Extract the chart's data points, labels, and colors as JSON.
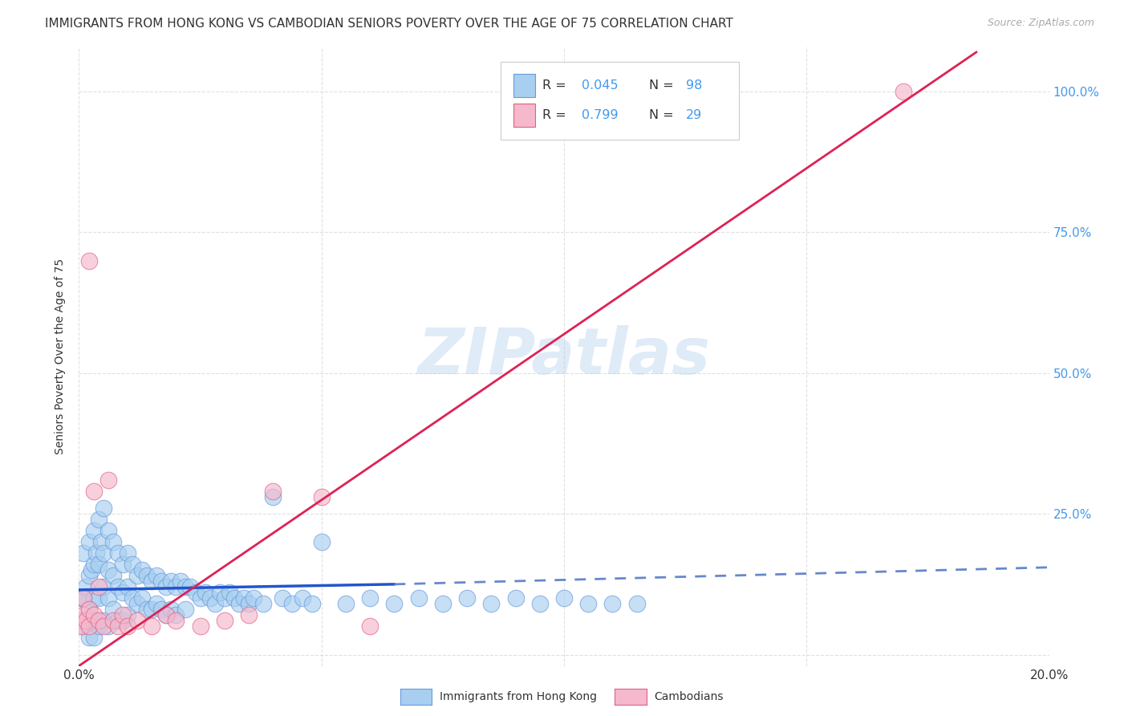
{
  "title": "IMMIGRANTS FROM HONG KONG VS CAMBODIAN SENIORS POVERTY OVER THE AGE OF 75 CORRELATION CHART",
  "source": "Source: ZipAtlas.com",
  "ylabel": "Seniors Poverty Over the Age of 75",
  "xlim": [
    0.0,
    0.2
  ],
  "ylim": [
    -0.02,
    1.08
  ],
  "x_ticks": [
    0.0,
    0.05,
    0.1,
    0.15,
    0.2
  ],
  "x_tick_labels": [
    "0.0%",
    "",
    "",
    "",
    "20.0%"
  ],
  "y_ticks": [
    0.0,
    0.25,
    0.5,
    0.75,
    1.0
  ],
  "y_tick_labels": [
    "",
    "25.0%",
    "50.0%",
    "75.0%",
    "100.0%"
  ],
  "hk_color": "#a8cff0",
  "hk_edge_color": "#6699dd",
  "cam_color": "#f5b8cc",
  "cam_edge_color": "#e06080",
  "trend_hk_solid_color": "#2255cc",
  "trend_hk_dash_color": "#6688cc",
  "trend_cam_color": "#dd2255",
  "watermark": "ZIPatlas",
  "hk_scatter_x": [
    0.0005,
    0.001,
    0.001,
    0.001,
    0.0015,
    0.002,
    0.002,
    0.002,
    0.002,
    0.0025,
    0.003,
    0.003,
    0.003,
    0.003,
    0.003,
    0.0035,
    0.004,
    0.004,
    0.004,
    0.004,
    0.0045,
    0.005,
    0.005,
    0.005,
    0.005,
    0.006,
    0.006,
    0.006,
    0.006,
    0.007,
    0.007,
    0.007,
    0.008,
    0.008,
    0.008,
    0.009,
    0.009,
    0.009,
    0.01,
    0.01,
    0.01,
    0.011,
    0.011,
    0.012,
    0.012,
    0.013,
    0.013,
    0.014,
    0.014,
    0.015,
    0.015,
    0.016,
    0.016,
    0.017,
    0.017,
    0.018,
    0.018,
    0.019,
    0.019,
    0.02,
    0.02,
    0.021,
    0.022,
    0.022,
    0.023,
    0.024,
    0.025,
    0.026,
    0.027,
    0.028,
    0.029,
    0.03,
    0.031,
    0.032,
    0.033,
    0.034,
    0.035,
    0.036,
    0.038,
    0.04,
    0.042,
    0.044,
    0.046,
    0.048,
    0.05,
    0.055,
    0.06,
    0.065,
    0.07,
    0.075,
    0.08,
    0.085,
    0.09,
    0.095,
    0.1,
    0.105,
    0.11,
    0.115
  ],
  "hk_scatter_y": [
    0.1,
    0.18,
    0.1,
    0.05,
    0.12,
    0.2,
    0.14,
    0.08,
    0.03,
    0.15,
    0.22,
    0.16,
    0.1,
    0.06,
    0.03,
    0.18,
    0.24,
    0.16,
    0.1,
    0.05,
    0.2,
    0.26,
    0.18,
    0.12,
    0.06,
    0.22,
    0.15,
    0.1,
    0.05,
    0.2,
    0.14,
    0.08,
    0.18,
    0.12,
    0.06,
    0.16,
    0.11,
    0.06,
    0.18,
    0.12,
    0.07,
    0.16,
    0.1,
    0.14,
    0.09,
    0.15,
    0.1,
    0.14,
    0.08,
    0.13,
    0.08,
    0.14,
    0.09,
    0.13,
    0.08,
    0.12,
    0.07,
    0.13,
    0.08,
    0.12,
    0.07,
    0.13,
    0.12,
    0.08,
    0.12,
    0.11,
    0.1,
    0.11,
    0.1,
    0.09,
    0.11,
    0.1,
    0.11,
    0.1,
    0.09,
    0.1,
    0.09,
    0.1,
    0.09,
    0.28,
    0.1,
    0.09,
    0.1,
    0.09,
    0.2,
    0.09,
    0.1,
    0.09,
    0.1,
    0.09,
    0.1,
    0.09,
    0.1,
    0.09,
    0.1,
    0.09,
    0.09,
    0.09
  ],
  "cam_scatter_x": [
    0.0003,
    0.0005,
    0.001,
    0.001,
    0.0015,
    0.002,
    0.002,
    0.003,
    0.003,
    0.004,
    0.004,
    0.005,
    0.006,
    0.007,
    0.008,
    0.009,
    0.01,
    0.012,
    0.015,
    0.018,
    0.02,
    0.025,
    0.03,
    0.035,
    0.04,
    0.05,
    0.06,
    0.17,
    0.002
  ],
  "cam_scatter_y": [
    0.06,
    0.05,
    0.07,
    0.1,
    0.06,
    0.08,
    0.05,
    0.29,
    0.07,
    0.06,
    0.12,
    0.05,
    0.31,
    0.06,
    0.05,
    0.07,
    0.05,
    0.06,
    0.05,
    0.07,
    0.06,
    0.05,
    0.06,
    0.07,
    0.29,
    0.28,
    0.05,
    1.0,
    0.7
  ],
  "hk_trend_x0": 0.0,
  "hk_trend_x_solid_end": 0.065,
  "hk_trend_x_dash_end": 0.2,
  "hk_trend_y0": 0.115,
  "hk_trend_y_solid_end": 0.125,
  "hk_trend_y_dash_end": 0.155,
  "cam_trend_x0": 0.0,
  "cam_trend_x1": 0.185,
  "cam_trend_y0": -0.02,
  "cam_trend_y1": 1.07,
  "background_color": "#ffffff",
  "grid_color": "#e0e0e0",
  "tick_label_color_y": "#4499ee",
  "title_fontsize": 11,
  "source_fontsize": 9,
  "ylabel_fontsize": 10
}
